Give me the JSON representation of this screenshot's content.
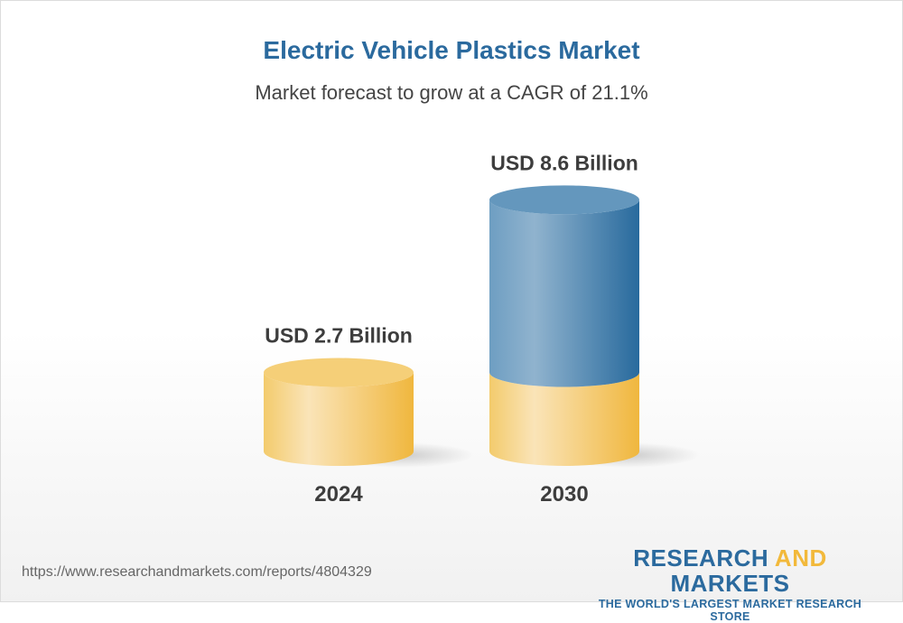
{
  "chart_data": {
    "type": "bar",
    "title": "Electric Vehicle Plastics Market",
    "subtitle": "Market forecast to grow at a CAGR of 21.1%",
    "categories": [
      "2024",
      "2030"
    ],
    "values": [
      2.7,
      8.6
    ],
    "unit": "USD Billion",
    "data_labels": [
      "USD 2.7 Billion",
      "USD 8.6 Billion"
    ],
    "style": "3d-cylinder",
    "colors": {
      "base": "#f2c35a",
      "growth": "#2b6a9e"
    }
  },
  "footer": {
    "url": "https://www.researchandmarkets.com/reports/4804329",
    "logo_word1": "RESEARCH",
    "logo_word2": "AND",
    "logo_word3": "MARKETS",
    "logo_tagline": "THE WORLD'S LARGEST MARKET RESEARCH STORE"
  }
}
